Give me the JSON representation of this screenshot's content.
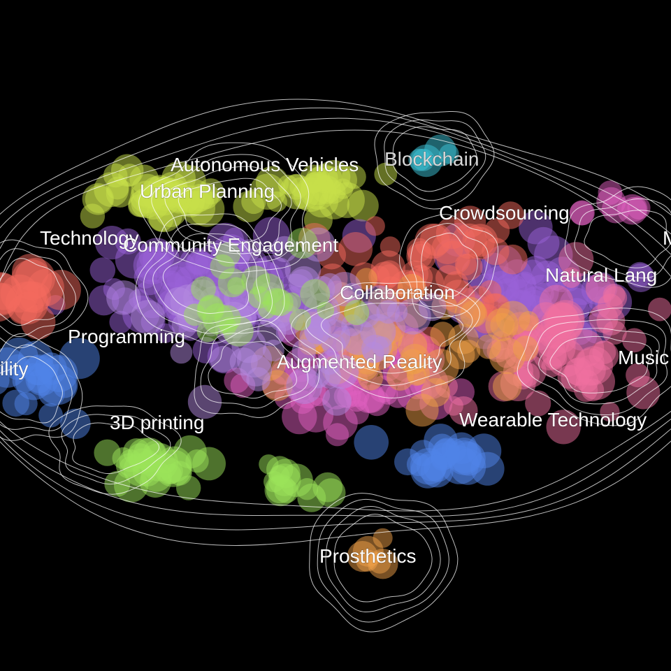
{
  "chart_data": {
    "type": "scatter",
    "background": "#000000",
    "contour_color": "#ffffff",
    "marker_opacity": 0.5,
    "labels": [
      "Autonomous Vehicles",
      "Blockchain",
      "Urban Planning",
      "Crowdsourcing",
      "Technology",
      "Community Engagement",
      "Natural Lang",
      "Collaboration",
      "Programming",
      "Augmented Reality",
      "Music",
      "ility",
      "3D printing",
      "Wearable Technology",
      "Prosthetics",
      "M"
    ],
    "cluster_colors": {
      "yellow_green": "#c8e04a",
      "green": "#9be35a",
      "cyan": "#3ec6da",
      "blue": "#4f84e8",
      "purple": "#9a62d8",
      "magenta": "#e060c0",
      "pink": "#f070a0",
      "salmon": "#f46a5e",
      "orange": "#f0a048",
      "lavender": "#b48ae0"
    }
  }
}
